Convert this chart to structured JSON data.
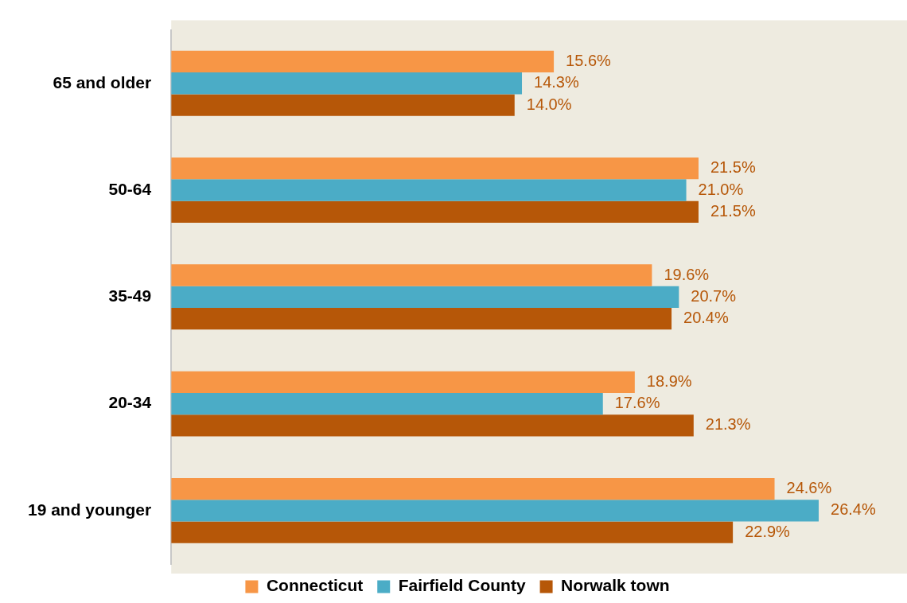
{
  "chart_data": {
    "type": "bar",
    "orientation": "horizontal",
    "categories": [
      "65 and older",
      "50-64",
      "35-49",
      "20-34",
      "19 and younger"
    ],
    "series": [
      {
        "name": "Connecticut",
        "color": "#f79646",
        "values": [
          15.6,
          21.5,
          19.6,
          18.9,
          24.6
        ],
        "value_labels": [
          "15.6%",
          "21.5%",
          "19.6%",
          "18.9%",
          "24.6%"
        ]
      },
      {
        "name": "Fairfield County",
        "color": "#4bacc6",
        "values": [
          14.3,
          21.0,
          20.7,
          17.6,
          26.4
        ],
        "value_labels": [
          "14.3%",
          "21.0%",
          "20.7%",
          "17.6%",
          "26.4%"
        ]
      },
      {
        "name": "Norwalk town",
        "color": "#b65708",
        "values": [
          14.0,
          21.5,
          20.4,
          21.3,
          22.9
        ],
        "value_labels": [
          "14.0%",
          "21.5%",
          "20.4%",
          "21.3%",
          "22.9%"
        ]
      }
    ],
    "grid": false,
    "legend": "bottom"
  }
}
